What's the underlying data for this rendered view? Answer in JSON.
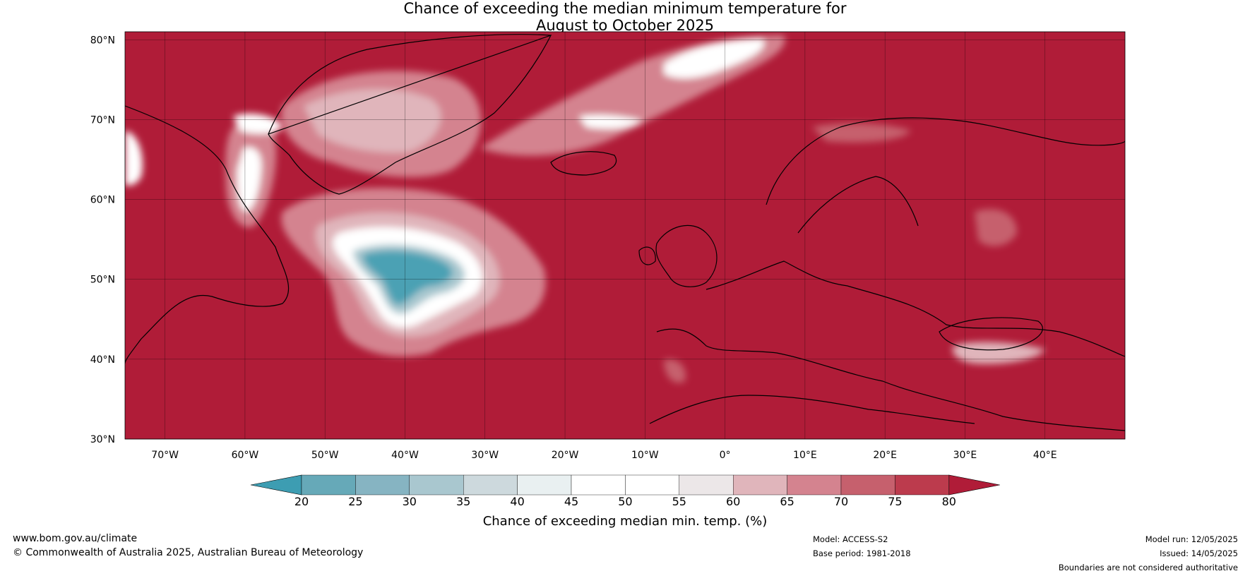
{
  "title": {
    "line1": "Chance of exceeding the median minimum temperature for",
    "line2": "August to October 2025"
  },
  "map": {
    "projection": "equirectangular",
    "lon_range": [
      -75,
      50
    ],
    "lat_range": [
      30,
      81
    ],
    "grid": true,
    "background_color": "#b01c38",
    "lat_ticks": [
      {
        "value": 80,
        "label": "80°N"
      },
      {
        "value": 70,
        "label": "70°N"
      },
      {
        "value": 60,
        "label": "60°N"
      },
      {
        "value": 50,
        "label": "50°N"
      },
      {
        "value": 40,
        "label": "40°N"
      },
      {
        "value": 30,
        "label": "30°N"
      }
    ],
    "lon_ticks": [
      {
        "value": -70,
        "label": "70°W"
      },
      {
        "value": -60,
        "label": "60°W"
      },
      {
        "value": -50,
        "label": "50°W"
      },
      {
        "value": -40,
        "label": "40°W"
      },
      {
        "value": -30,
        "label": "30°W"
      },
      {
        "value": -20,
        "label": "20°W"
      },
      {
        "value": -10,
        "label": "10°W"
      },
      {
        "value": 0,
        "label": "0°"
      },
      {
        "value": 10,
        "label": "10°E"
      },
      {
        "value": 20,
        "label": "20°E"
      },
      {
        "value": 30,
        "label": "30°E"
      },
      {
        "value": 40,
        "label": "40°E"
      }
    ]
  },
  "colorbar": {
    "title": "Chance of exceeding median min. temp. (%)",
    "ticks": [
      "20",
      "25",
      "30",
      "35",
      "40",
      "45",
      "50",
      "55",
      "60",
      "65",
      "70",
      "75",
      "80"
    ],
    "low_extend_color": "#3d9db2",
    "high_extend_color": "#b01c38",
    "colors": [
      "#66a9b8",
      "#86b4c2",
      "#a9c7cf",
      "#cdd9dd",
      "#e9f0f1",
      "#ffffff",
      "#ffffff",
      "#ece7e8",
      "#e0b5bb",
      "#d4838f",
      "#c6606d",
      "#bc3b4d"
    ]
  },
  "footer": {
    "url": "www.bom.gov.au/climate",
    "copyright": "© Commonwealth of Australia 2025, Australian Bureau of Meteorology",
    "model": "Model: ACCESS-S2",
    "base_period": "Base period: 1981-2018",
    "model_run": "Model run: 12/05/2025",
    "issued": "Issued: 14/05/2025",
    "disclaimer": "Boundaries are not considered authoritative"
  }
}
